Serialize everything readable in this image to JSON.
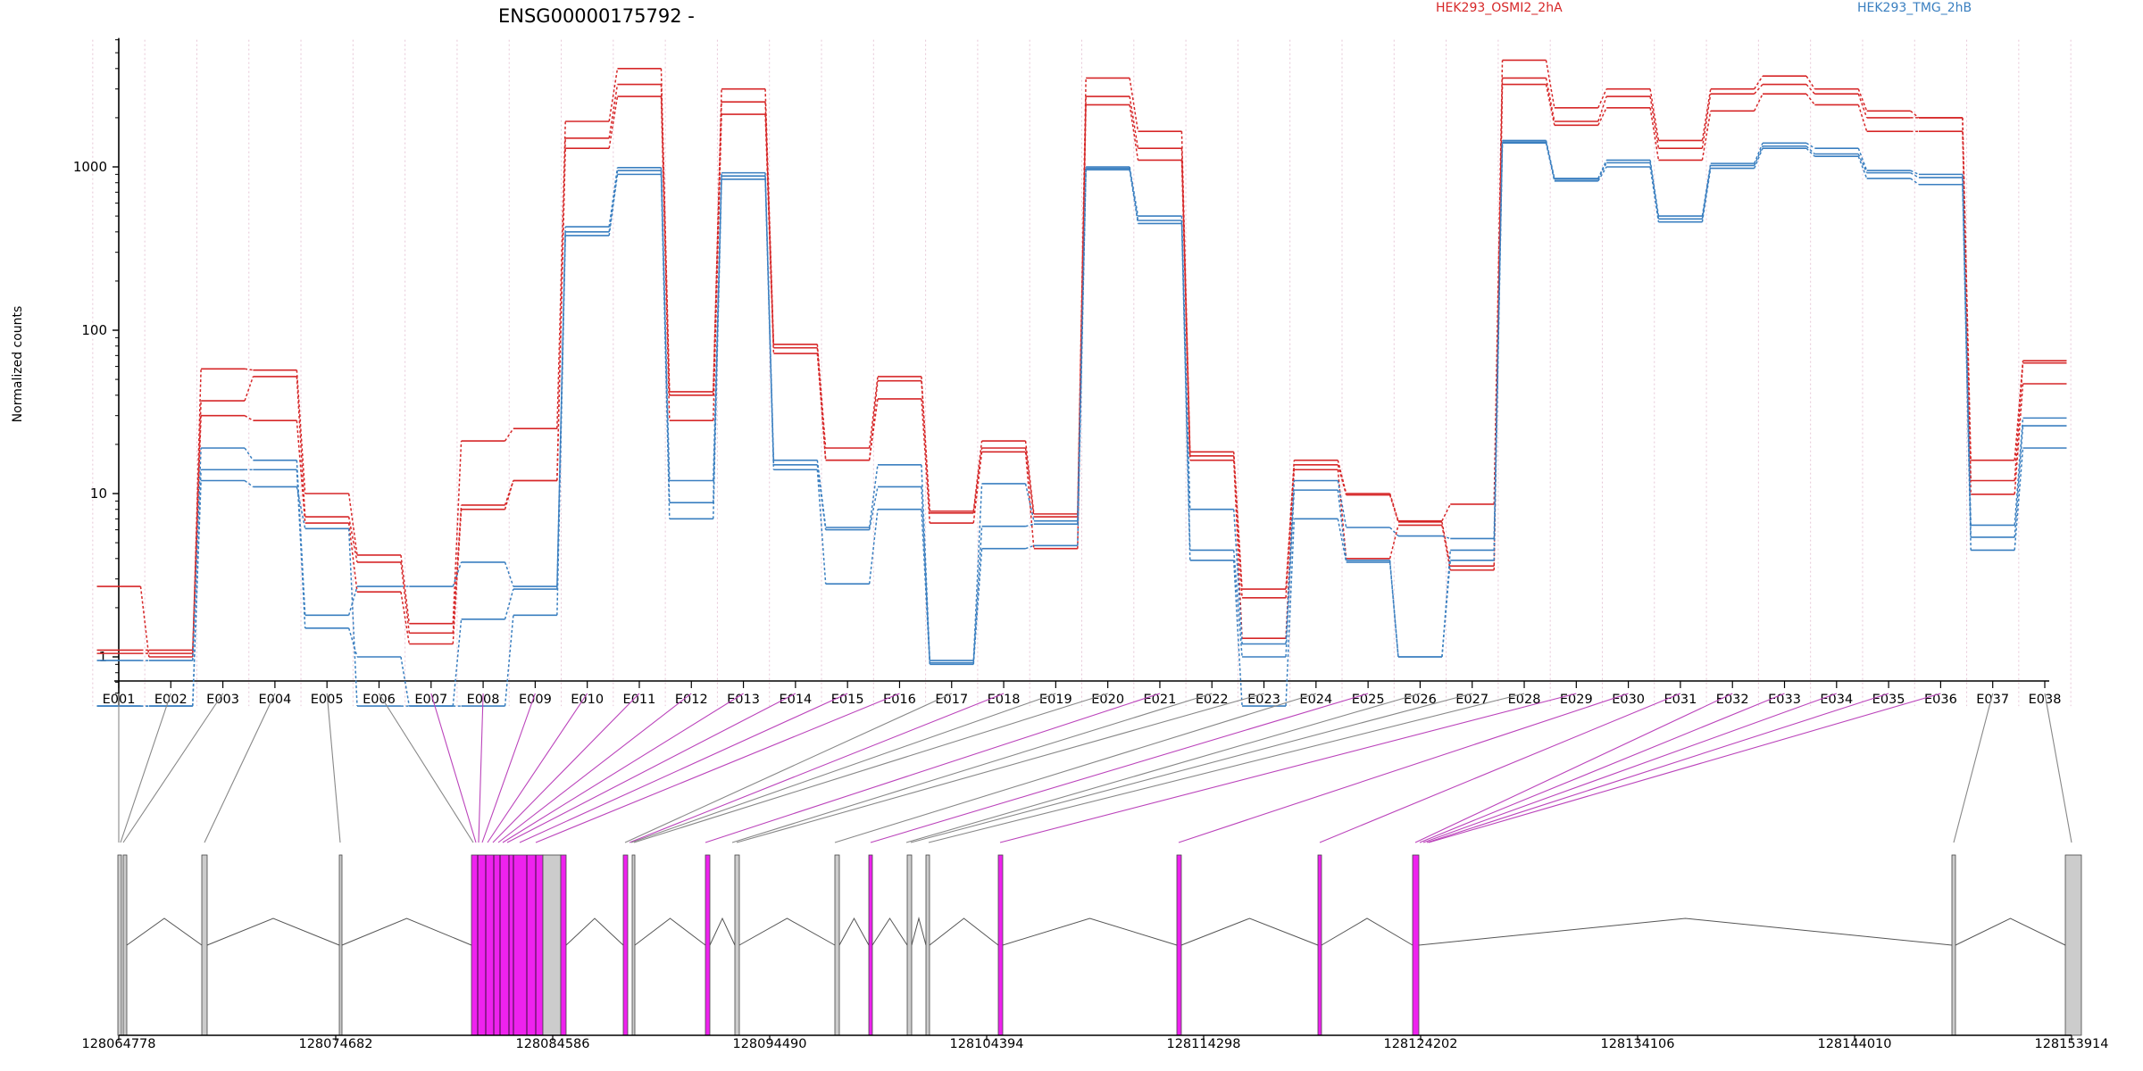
{
  "chart_data": {
    "type": "line",
    "title": "ENSG00000175792 -",
    "ylabel": "Normalized counts",
    "yscale": "log",
    "ylim": [
      0.5,
      6000
    ],
    "yticks": [
      1,
      10,
      100,
      1000
    ],
    "grid": "vertical dotted lines at exon boundaries",
    "legend": [
      {
        "name": "HEK293_OSMI2_2hA",
        "color": "#d62728"
      },
      {
        "name": "HEK293_TMG_2hB",
        "color": "#3a7fc0"
      }
    ],
    "exons": [
      "E001",
      "E002",
      "E003",
      "E004",
      "E005",
      "E006",
      "E007",
      "E008",
      "E009",
      "E010",
      "E011",
      "E012",
      "E013",
      "E014",
      "E015",
      "E016",
      "E017",
      "E018",
      "E019",
      "E020",
      "E021",
      "E022",
      "E023",
      "E024",
      "E025",
      "E026",
      "E027",
      "E028",
      "E029",
      "E030",
      "E031",
      "E032",
      "E033",
      "E034",
      "E035",
      "E036",
      "E037",
      "E038"
    ],
    "series": [
      {
        "group": "HEK293_OSMI2_2hA",
        "color": "#d62728",
        "values": [
          2.7,
          1.0,
          58,
          57,
          10,
          4.2,
          1.6,
          21,
          25,
          1900,
          4000,
          42,
          3000,
          82,
          19,
          52,
          7.8,
          21,
          7.5,
          3500,
          1650,
          18,
          2.6,
          16,
          10,
          6.8,
          8.6,
          4500,
          2300,
          3000,
          1450,
          3000,
          3600,
          3000,
          2200,
          2000,
          16,
          65
        ]
      },
      {
        "group": "HEK293_OSMI2_2hA",
        "color": "#d62728",
        "values": [
          1.1,
          1.1,
          37,
          52,
          7.2,
          3.8,
          1.4,
          8.5,
          12,
          1500,
          3200,
          40,
          2500,
          78,
          16,
          49,
          7.6,
          19,
          7.2,
          2700,
          1300,
          17,
          2.3,
          15,
          9.8,
          6.7,
          3.6,
          3500,
          1900,
          2700,
          1300,
          2800,
          3200,
          2800,
          2000,
          2000,
          12,
          63
        ]
      },
      {
        "group": "HEK293_OSMI2_2hA",
        "color": "#d62728",
        "values": [
          1.05,
          1.05,
          30,
          28,
          6.6,
          2.5,
          1.2,
          8,
          12,
          1300,
          2700,
          28,
          2100,
          72,
          16,
          38,
          6.6,
          18,
          4.6,
          2400,
          1100,
          16,
          1.3,
          14,
          4,
          6.4,
          3.4,
          3200,
          1800,
          2300,
          1100,
          2200,
          2800,
          2400,
          1650,
          1650,
          9.9,
          47
        ]
      },
      {
        "group": "HEK293_TMG_2hB",
        "color": "#3a7fc0",
        "values": [
          0.95,
          0.95,
          19,
          16,
          1.8,
          2.7,
          2.7,
          3.8,
          2.7,
          430,
          990,
          12,
          920,
          16,
          6.2,
          15,
          0.95,
          11.5,
          6.8,
          1000,
          500,
          8,
          1.2,
          12,
          6.2,
          5.5,
          5.3,
          1450,
          850,
          1100,
          500,
          1050,
          1400,
          1300,
          950,
          900,
          6.4,
          29
        ]
      },
      {
        "group": "HEK293_TMG_2hB",
        "color": "#3a7fc0",
        "values": [
          0.5,
          0.5,
          14,
          14,
          1.5,
          1.0,
          0.5,
          1.7,
          2.6,
          400,
          950,
          8.8,
          880,
          15,
          6.0,
          11,
          0.92,
          6.3,
          6.5,
          980,
          470,
          4.5,
          1.0,
          10.5,
          3.9,
          1.0,
          4.5,
          1420,
          840,
          1060,
          480,
          1020,
          1340,
          1200,
          920,
          860,
          5.4,
          26
        ]
      },
      {
        "group": "HEK293_TMG_2hB",
        "color": "#3a7fc0",
        "values": [
          0.5,
          0.5,
          12,
          11,
          6.1,
          0.5,
          0.5,
          0.5,
          1.8,
          380,
          900,
          7,
          840,
          14,
          2.8,
          8,
          0.9,
          4.6,
          4.8,
          960,
          450,
          3.9,
          0.5,
          7,
          3.8,
          1.0,
          3.9,
          1400,
          820,
          1000,
          460,
          980,
          1300,
          1160,
          850,
          780,
          4.5,
          19
        ]
      }
    ]
  },
  "gene_model": {
    "coordinates": [
      "128064778",
      "128074682",
      "128084586",
      "128094490",
      "128104394",
      "128114298",
      "128124202",
      "128134106",
      "128144010",
      "128153914"
    ],
    "colors": {
      "significant": "#ee22ee",
      "not_significant": "#cccccc",
      "significant_line": "#bb44bb",
      "line": "#888888",
      "intron": "#555555"
    }
  }
}
